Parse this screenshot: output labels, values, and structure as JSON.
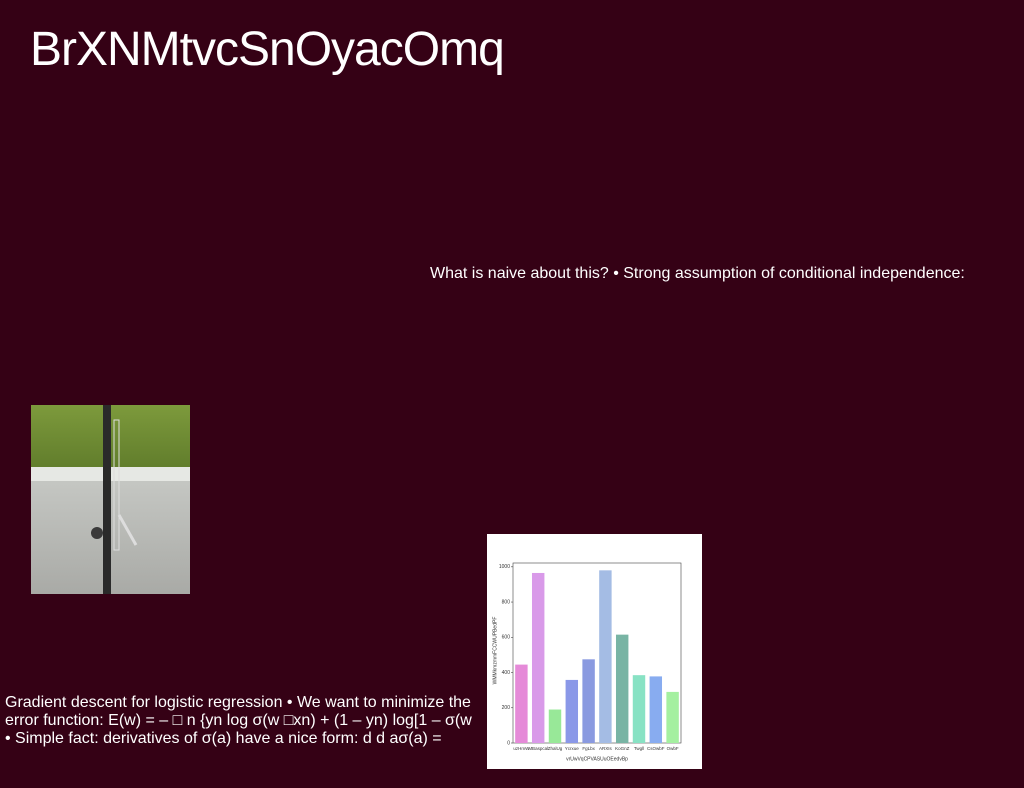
{
  "title": "BrXNMtvcSnOyacOmq",
  "text_1": "What is naive about this? • Strong assumption of conditional independence:",
  "text_2": "Gradient descent for logistic regression • We want to minimize the error function: E(w) = – □ n {yn log σ(w □xn) + (1 – yn) log[1 – σ(w • Simple fact: derivatives of σ(a) have a nice form: d d aσ(a) =",
  "figure": {
    "chart_data": {
      "type": "bar",
      "ylabel": "WMMkmzmmFCCWUPBedPF",
      "xlabel": "vrUwVqCPVASUuOEedvBp",
      "categories": [
        "uzHmW",
        "MBaspcal",
        "ZhalUg",
        "Ycrxue",
        "FgLbx",
        "ARXIs",
        "KoGnZ",
        "Twgll",
        "CsOwbF",
        "OwbF"
      ],
      "values": [
        445,
        965,
        190,
        358,
        475,
        980,
        615,
        385,
        378,
        290
      ],
      "colors": [
        "#e58ad8",
        "#d99ae9",
        "#98e898",
        "#8a98e8",
        "#8a9ae0",
        "#a4bce4",
        "#78b4a4",
        "#88e2c4",
        "#88acf0",
        "#a4f0a0"
      ],
      "ylim": [
        0,
        1050
      ],
      "yticks": [
        0,
        200,
        400,
        600,
        800,
        1000
      ]
    }
  }
}
